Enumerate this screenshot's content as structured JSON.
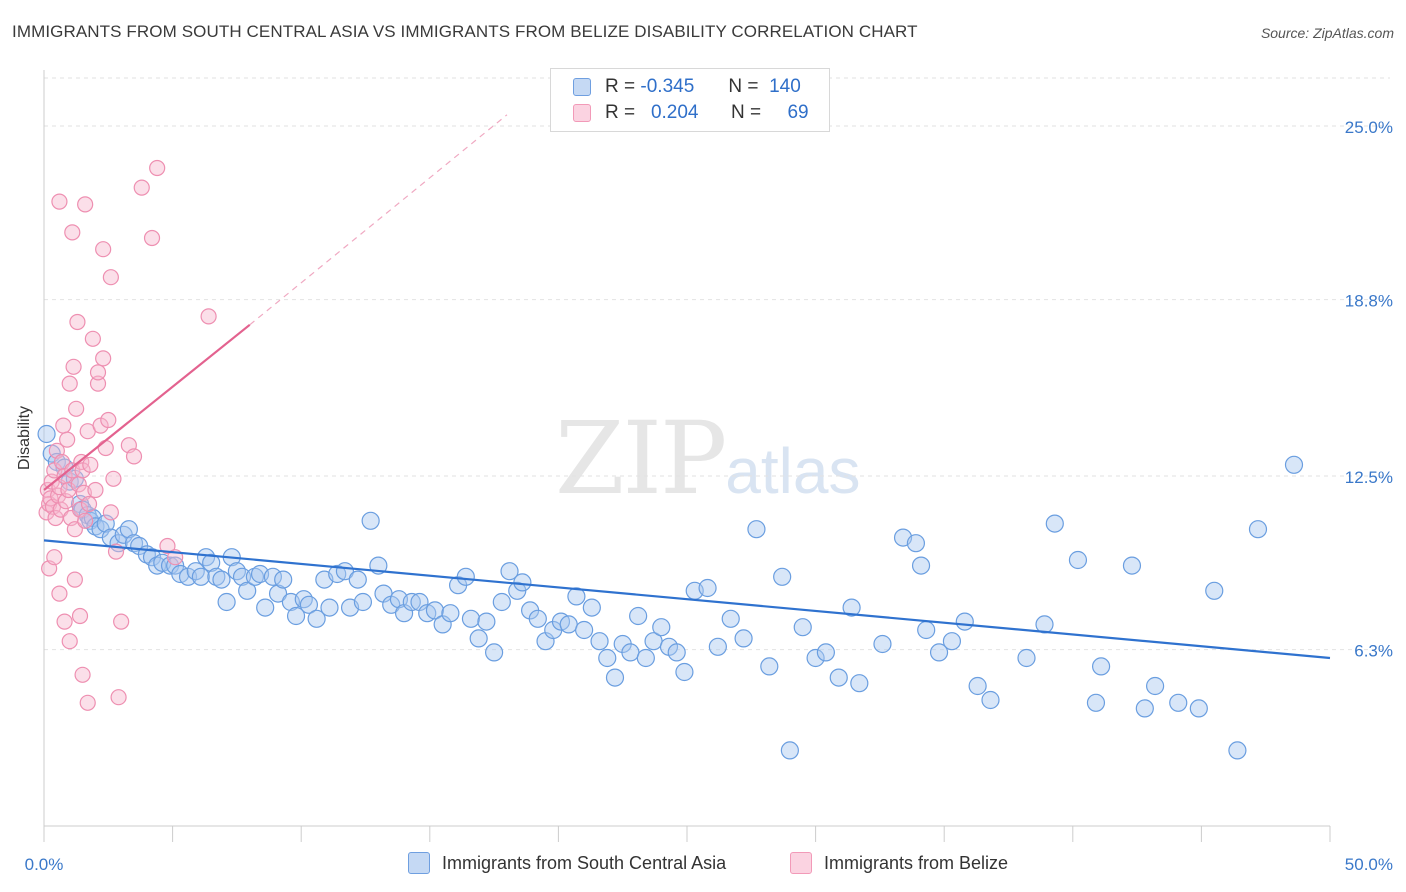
{
  "title": "IMMIGRANTS FROM SOUTH CENTRAL ASIA VS IMMIGRANTS FROM BELIZE DISABILITY CORRELATION CHART",
  "source": "Source: ZipAtlas.com",
  "watermark": {
    "zip": "ZIP",
    "atlas": "atlas"
  },
  "legend_top": {
    "rows": [
      {
        "r_label": "R =",
        "r_value": "-0.345",
        "n_label": "N =",
        "n_value": "140",
        "color": "#6f9fe0"
      },
      {
        "r_label": "R =",
        "r_value": "0.204",
        "n_label": "N =",
        "n_value": "69",
        "color": "#f29ab8"
      }
    ]
  },
  "colors": {
    "blue": "#4a8ad8",
    "blue_fill": "#a9c7ef",
    "pink": "#e8679a",
    "pink_fill": "#f7b9cf",
    "axis_text": "#3a78c9",
    "grid": "#e3e3e3"
  },
  "chart_data": {
    "type": "scatter",
    "title": "IMMIGRANTS FROM SOUTH CENTRAL ASIA VS IMMIGRANTS FROM BELIZE DISABILITY CORRELATION CHART",
    "xlabel": "",
    "ylabel": "Disability",
    "xlim": [
      0,
      50
    ],
    "ylim": [
      0,
      27
    ],
    "x_ticks": [
      "0.0%",
      "50.0%"
    ],
    "y_ticks": [
      {
        "value": 25.0,
        "label": "25.0%"
      },
      {
        "value": 18.8,
        "label": "18.8%"
      },
      {
        "value": 12.5,
        "label": "12.5%"
      },
      {
        "value": 6.3,
        "label": "6.3%"
      }
    ],
    "grid": true,
    "legend_placement": "bottom",
    "series": [
      {
        "name": "Immigrants from South Central Asia",
        "color": "#4a8ad8",
        "trend": {
          "x": [
            0,
            50
          ],
          "y": [
            10.2,
            6.0
          ],
          "dashed_extension": false
        },
        "points": [
          [
            0.1,
            14.0
          ],
          [
            0.3,
            13.3
          ],
          [
            0.5,
            13.0
          ],
          [
            0.8,
            12.8
          ],
          [
            1.0,
            12.3
          ],
          [
            1.2,
            12.4
          ],
          [
            1.4,
            11.5
          ],
          [
            1.5,
            11.3
          ],
          [
            1.7,
            11.1
          ],
          [
            1.8,
            10.9
          ],
          [
            1.9,
            11.0
          ],
          [
            2.0,
            10.7
          ],
          [
            2.2,
            10.6
          ],
          [
            2.4,
            10.8
          ],
          [
            2.6,
            10.3
          ],
          [
            2.9,
            10.1
          ],
          [
            3.1,
            10.4
          ],
          [
            3.3,
            10.6
          ],
          [
            3.5,
            10.1
          ],
          [
            3.7,
            10.0
          ],
          [
            4.0,
            9.7
          ],
          [
            4.2,
            9.6
          ],
          [
            4.4,
            9.3
          ],
          [
            4.6,
            9.4
          ],
          [
            4.9,
            9.3
          ],
          [
            5.1,
            9.3
          ],
          [
            5.3,
            9.0
          ],
          [
            5.6,
            8.9
          ],
          [
            5.9,
            9.1
          ],
          [
            6.1,
            8.9
          ],
          [
            6.3,
            9.6
          ],
          [
            6.5,
            9.4
          ],
          [
            6.7,
            8.9
          ],
          [
            6.9,
            8.8
          ],
          [
            7.1,
            8.0
          ],
          [
            7.3,
            9.6
          ],
          [
            7.5,
            9.1
          ],
          [
            7.7,
            8.9
          ],
          [
            7.9,
            8.4
          ],
          [
            8.2,
            8.9
          ],
          [
            8.4,
            9.0
          ],
          [
            8.6,
            7.8
          ],
          [
            8.9,
            8.9
          ],
          [
            9.1,
            8.3
          ],
          [
            9.3,
            8.8
          ],
          [
            9.6,
            8.0
          ],
          [
            9.8,
            7.5
          ],
          [
            10.1,
            8.1
          ],
          [
            10.3,
            7.9
          ],
          [
            10.6,
            7.4
          ],
          [
            10.9,
            8.8
          ],
          [
            11.1,
            7.8
          ],
          [
            11.4,
            9.0
          ],
          [
            11.7,
            9.1
          ],
          [
            11.9,
            7.8
          ],
          [
            12.2,
            8.8
          ],
          [
            12.4,
            8.0
          ],
          [
            12.7,
            10.9
          ],
          [
            13.0,
            9.3
          ],
          [
            13.2,
            8.3
          ],
          [
            13.5,
            7.9
          ],
          [
            13.8,
            8.1
          ],
          [
            14.0,
            7.6
          ],
          [
            14.3,
            8.0
          ],
          [
            14.6,
            8.0
          ],
          [
            14.9,
            7.6
          ],
          [
            15.2,
            7.7
          ],
          [
            15.5,
            7.2
          ],
          [
            15.8,
            7.6
          ],
          [
            16.1,
            8.6
          ],
          [
            16.4,
            8.9
          ],
          [
            16.6,
            7.4
          ],
          [
            16.9,
            6.7
          ],
          [
            17.2,
            7.3
          ],
          [
            17.5,
            6.2
          ],
          [
            17.8,
            8.0
          ],
          [
            18.1,
            9.1
          ],
          [
            18.4,
            8.4
          ],
          [
            18.6,
            8.7
          ],
          [
            18.9,
            7.7
          ],
          [
            19.2,
            7.4
          ],
          [
            19.5,
            6.6
          ],
          [
            19.8,
            7.0
          ],
          [
            20.1,
            7.3
          ],
          [
            20.4,
            7.2
          ],
          [
            20.7,
            8.2
          ],
          [
            21.0,
            7.0
          ],
          [
            21.3,
            7.8
          ],
          [
            21.6,
            6.6
          ],
          [
            21.9,
            6.0
          ],
          [
            22.2,
            5.3
          ],
          [
            22.5,
            6.5
          ],
          [
            22.8,
            6.2
          ],
          [
            23.1,
            7.5
          ],
          [
            23.4,
            6.0
          ],
          [
            23.7,
            6.6
          ],
          [
            24.0,
            7.1
          ],
          [
            24.3,
            6.4
          ],
          [
            24.6,
            6.2
          ],
          [
            24.9,
            5.5
          ],
          [
            25.3,
            8.4
          ],
          [
            25.8,
            8.5
          ],
          [
            26.2,
            6.4
          ],
          [
            26.7,
            7.4
          ],
          [
            27.2,
            6.7
          ],
          [
            27.7,
            10.6
          ],
          [
            28.2,
            5.7
          ],
          [
            28.7,
            8.9
          ],
          [
            29.0,
            2.7
          ],
          [
            29.5,
            7.1
          ],
          [
            30.0,
            6.0
          ],
          [
            30.4,
            6.2
          ],
          [
            30.9,
            5.3
          ],
          [
            31.4,
            7.8
          ],
          [
            31.7,
            5.1
          ],
          [
            32.6,
            6.5
          ],
          [
            33.4,
            10.3
          ],
          [
            33.9,
            10.1
          ],
          [
            34.1,
            9.3
          ],
          [
            34.3,
            7.0
          ],
          [
            34.8,
            6.2
          ],
          [
            35.3,
            6.6
          ],
          [
            35.8,
            7.3
          ],
          [
            36.3,
            5.0
          ],
          [
            36.8,
            4.5
          ],
          [
            38.2,
            6.0
          ],
          [
            38.9,
            7.2
          ],
          [
            39.3,
            10.8
          ],
          [
            40.2,
            9.5
          ],
          [
            40.9,
            4.4
          ],
          [
            41.1,
            5.7
          ],
          [
            42.3,
            9.3
          ],
          [
            42.8,
            4.2
          ],
          [
            43.2,
            5.0
          ],
          [
            44.1,
            4.4
          ],
          [
            44.9,
            4.2
          ],
          [
            45.5,
            8.4
          ],
          [
            46.4,
            2.7
          ],
          [
            47.2,
            10.6
          ],
          [
            48.6,
            12.9
          ]
        ]
      },
      {
        "name": "Immigrants from Belize",
        "color": "#e8679a",
        "trend": {
          "x": [
            0,
            8.0
          ],
          "y": [
            12.0,
            17.9
          ],
          "dashed_extension": true,
          "dash_to": [
            18.0,
            25.4
          ]
        },
        "points": [
          [
            0.1,
            11.2
          ],
          [
            0.15,
            12.0
          ],
          [
            0.2,
            11.5
          ],
          [
            0.25,
            11.7
          ],
          [
            0.3,
            12.3
          ],
          [
            0.35,
            11.4
          ],
          [
            0.4,
            12.7
          ],
          [
            0.45,
            11.0
          ],
          [
            0.5,
            13.4
          ],
          [
            0.55,
            11.8
          ],
          [
            0.6,
            12.1
          ],
          [
            0.65,
            11.3
          ],
          [
            0.7,
            13.0
          ],
          [
            0.75,
            14.3
          ],
          [
            0.8,
            12.5
          ],
          [
            0.85,
            11.6
          ],
          [
            0.9,
            13.8
          ],
          [
            0.95,
            12.0
          ],
          [
            1.0,
            15.8
          ],
          [
            1.05,
            11.0
          ],
          [
            1.1,
            12.7
          ],
          [
            1.15,
            16.4
          ],
          [
            1.2,
            10.6
          ],
          [
            1.25,
            14.9
          ],
          [
            1.3,
            18.0
          ],
          [
            1.35,
            12.2
          ],
          [
            1.4,
            11.3
          ],
          [
            1.45,
            13.0
          ],
          [
            1.5,
            12.7
          ],
          [
            1.55,
            11.9
          ],
          [
            1.6,
            10.9
          ],
          [
            1.7,
            14.1
          ],
          [
            1.75,
            11.5
          ],
          [
            1.8,
            12.9
          ],
          [
            1.9,
            17.4
          ],
          [
            2.0,
            12.0
          ],
          [
            2.1,
            15.8
          ],
          [
            2.2,
            14.3
          ],
          [
            2.3,
            16.7
          ],
          [
            2.4,
            13.5
          ],
          [
            2.5,
            14.5
          ],
          [
            2.6,
            11.2
          ],
          [
            2.7,
            12.4
          ],
          [
            0.6,
            22.3
          ],
          [
            1.1,
            21.2
          ],
          [
            1.6,
            22.2
          ],
          [
            2.3,
            20.6
          ],
          [
            0.2,
            9.2
          ],
          [
            0.4,
            9.6
          ],
          [
            0.6,
            8.3
          ],
          [
            0.8,
            7.3
          ],
          [
            1.0,
            6.6
          ],
          [
            1.2,
            8.8
          ],
          [
            1.4,
            7.5
          ],
          [
            1.5,
            5.4
          ],
          [
            1.7,
            4.4
          ],
          [
            2.1,
            16.2
          ],
          [
            2.6,
            19.6
          ],
          [
            3.3,
            13.6
          ],
          [
            2.8,
            9.8
          ],
          [
            2.9,
            4.6
          ],
          [
            3.0,
            7.3
          ],
          [
            3.5,
            13.2
          ],
          [
            3.8,
            22.8
          ],
          [
            4.2,
            21.0
          ],
          [
            4.4,
            23.5
          ],
          [
            4.8,
            10.0
          ],
          [
            5.1,
            9.6
          ],
          [
            6.4,
            18.2
          ]
        ]
      }
    ]
  },
  "legend_bottom": {
    "items": [
      {
        "label": "Immigrants from South Central Asia",
        "color": "#6f9fe0"
      },
      {
        "label": "Immigrants from Belize",
        "color": "#f29ab8"
      }
    ]
  }
}
